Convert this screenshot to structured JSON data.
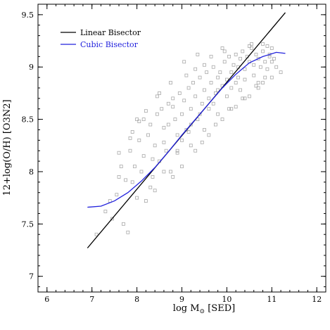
{
  "chart_data": {
    "type": "scatter",
    "xlabel_prefix": "log M",
    "xlabel_sub": "⊙",
    "xlabel_suffix": " [SED]",
    "ylabel": "12+log(O/H) [O3N2]",
    "xlim": [
      5.8,
      12.2
    ],
    "ylim": [
      6.85,
      9.6
    ],
    "x_ticks": [
      "6",
      "7",
      "8",
      "9",
      "10",
      "11",
      "12"
    ],
    "y_ticks": [
      "7",
      "7.5",
      "8",
      "8.5",
      "9",
      "9.5"
    ],
    "legend_position": "top-left",
    "colors": {
      "scatter": "#a8a8a8",
      "linear": "#000000",
      "cubic": "#2222dd",
      "axis": "#000000"
    },
    "series": [
      {
        "name": "Linear Bisector",
        "kind": "line",
        "color": "#000000",
        "x": [
          6.9,
          11.3
        ],
        "y": [
          7.27,
          9.52
        ]
      },
      {
        "name": "Cubic Bisector",
        "kind": "curve",
        "color": "#2222dd",
        "x": [
          6.9,
          7.2,
          7.5,
          7.8,
          8.1,
          8.4,
          8.7,
          9.0,
          9.3,
          9.6,
          9.9,
          10.2,
          10.5,
          10.8,
          11.1,
          11.3
        ],
        "y": [
          7.66,
          7.67,
          7.72,
          7.8,
          7.91,
          8.04,
          8.19,
          8.35,
          8.5,
          8.65,
          8.8,
          8.93,
          9.04,
          9.1,
          9.14,
          9.13
        ]
      }
    ],
    "scatter_points": {
      "x": [
        7.3,
        7.45,
        7.55,
        7.6,
        7.7,
        7.75,
        7.8,
        7.85,
        7.9,
        7.95,
        8.0,
        8.05,
        8.1,
        8.15,
        8.2,
        8.25,
        8.3,
        8.35,
        8.4,
        8.45,
        8.5,
        8.55,
        8.6,
        8.65,
        8.7,
        8.75,
        8.8,
        8.85,
        8.9,
        8.95,
        9.0,
        9.05,
        9.1,
        9.15,
        9.2,
        9.25,
        9.3,
        9.35,
        9.4,
        9.45,
        9.5,
        9.55,
        9.6,
        9.65,
        9.7,
        9.75,
        9.8,
        9.85,
        9.9,
        9.95,
        10.0,
        10.05,
        10.1,
        10.15,
        10.2,
        10.25,
        10.3,
        10.35,
        10.4,
        10.45,
        10.5,
        10.55,
        10.6,
        10.65,
        10.7,
        10.75,
        10.8,
        10.85,
        10.9,
        10.95,
        11.0,
        11.1,
        11.2,
        7.65,
        7.9,
        8.05,
        8.2,
        8.35,
        8.5,
        8.6,
        8.7,
        8.8,
        8.9,
        9.0,
        9.1,
        9.2,
        9.3,
        9.4,
        9.5,
        9.6,
        9.7,
        9.8,
        9.9,
        10.0,
        10.1,
        10.2,
        10.3,
        10.4,
        10.5,
        10.6,
        10.7,
        10.8,
        10.9,
        11.0,
        8.0,
        8.3,
        8.6,
        8.9,
        9.2,
        9.5,
        9.8,
        10.1,
        10.4,
        10.7,
        11.0,
        7.85,
        8.15,
        8.45,
        8.75,
        9.05,
        9.35,
        9.65,
        9.95,
        10.25,
        10.55,
        10.85,
        7.4,
        7.6,
        8.4,
        8.8,
        9.0,
        9.3,
        9.6,
        9.9,
        10.2,
        10.5,
        10.8,
        11.05,
        7.1,
        9.15,
        9.45,
        9.75,
        10.05,
        10.35,
        10.65,
        10.95
      ],
      "y": [
        7.62,
        7.55,
        7.78,
        7.95,
        7.5,
        7.92,
        7.42,
        8.2,
        7.9,
        8.05,
        7.75,
        8.3,
        8.0,
        8.15,
        7.72,
        8.35,
        8.45,
        7.95,
        8.25,
        8.55,
        8.1,
        8.6,
        8.42,
        8.2,
        8.65,
        8.0,
        8.7,
        8.5,
        8.35,
        8.75,
        8.55,
        8.68,
        8.4,
        8.8,
        8.6,
        8.85,
        8.72,
        8.5,
        8.9,
        8.65,
        8.78,
        8.95,
        8.7,
        8.85,
        9.0,
        8.75,
        8.9,
        8.95,
        8.82,
        9.05,
        8.88,
        9.1,
        8.95,
        9.02,
        9.12,
        8.9,
        9.08,
        9.15,
        8.98,
        9.1,
        9.05,
        9.18,
        9.02,
        9.12,
        9.08,
        9.0,
        9.15,
        9.05,
        8.98,
        9.1,
        9.05,
        9.0,
        8.95,
        8.05,
        8.38,
        8.48,
        8.58,
        8.12,
        8.75,
        8.28,
        8.45,
        8.62,
        8.18,
        8.3,
        8.92,
        8.45,
        8.98,
        8.55,
        9.02,
        8.6,
        8.65,
        8.78,
        9.18,
        8.72,
        8.8,
        8.85,
        8.78,
        8.88,
        9.2,
        8.92,
        8.85,
        9.22,
        9.2,
        9.18,
        8.5,
        7.85,
        8.0,
        8.2,
        8.25,
        8.4,
        8.55,
        8.6,
        8.7,
        8.8,
        8.9,
        8.32,
        8.5,
        8.72,
        8.85,
        9.05,
        9.12,
        9.1,
        9.15,
        9.0,
        9.22,
        8.9,
        7.72,
        8.18,
        7.82,
        7.95,
        8.05,
        8.2,
        8.35,
        8.5,
        8.62,
        8.72,
        8.85,
        9.08,
        7.4,
        8.38,
        8.28,
        8.45,
        8.6,
        8.7,
        8.82,
        9.12
      ]
    },
    "legend": [
      {
        "label": "Linear Bisector",
        "color": "#000000"
      },
      {
        "label": "Cubic Bisector",
        "color": "#2222dd"
      }
    ]
  }
}
